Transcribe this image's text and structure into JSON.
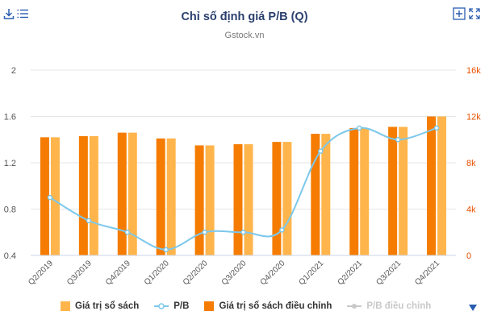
{
  "header": {
    "title": "Chỉ số định giá P/B (Q)",
    "subtitle": "Gstock.vn"
  },
  "colors": {
    "book_value": "#ffb54c",
    "adjusted_book_value": "#f57c00",
    "pb_line": "#7cc8ec",
    "pb_adjusted": "#c8c8c8",
    "right_axis": "#e65100",
    "grid": "#e6e6e6",
    "title": "#2a3f6e",
    "toolbar": "#2a5db0"
  },
  "toolbar": {
    "download_icon": "download-icon",
    "menu_icon": "menu-icon",
    "zoom_in_icon": "zoom-in-icon",
    "fullscreen_icon": "fullscreen-icon"
  },
  "chart_data": {
    "type": "bar",
    "title": "Chỉ số định giá P/B (Q)",
    "subtitle": "Gstock.vn",
    "categories": [
      "Q2/2019",
      "Q3/2019",
      "Q4/2019",
      "Q1/2020",
      "Q2/2020",
      "Q3/2020",
      "Q4/2020",
      "Q1/2021",
      "Q2/2021",
      "Q3/2021",
      "Q4/2021"
    ],
    "left_axis": {
      "ylim": [
        0.4,
        2.0
      ],
      "ticks": [
        "0.4",
        "0.8",
        "1.2",
        "1.6",
        "2"
      ],
      "tick_values": [
        0.4,
        0.8,
        1.2,
        1.6,
        2.0
      ]
    },
    "right_axis": {
      "ylim": [
        0,
        16000
      ],
      "ticks": [
        "0",
        "4k",
        "8k",
        "12k",
        "16k"
      ],
      "tick_values": [
        0,
        4000,
        8000,
        12000,
        16000
      ]
    },
    "grid": true,
    "legend_position": "bottom",
    "series": [
      {
        "name": "Giá trị sổ sách",
        "type": "bar",
        "axis": "right",
        "values": [
          10200,
          10300,
          10600,
          10100,
          9500,
          9600,
          9800,
          10500,
          11000,
          11100,
          12000
        ],
        "visible": true
      },
      {
        "name": "P/B",
        "type": "spline",
        "axis": "left",
        "values": [
          0.9,
          0.7,
          0.6,
          0.45,
          0.6,
          0.6,
          0.62,
          1.3,
          1.5,
          1.4,
          1.5
        ],
        "visible": true
      },
      {
        "name": "Giá trị sổ sách điều chỉnh",
        "type": "bar",
        "axis": "right",
        "values": [
          10200,
          10300,
          10600,
          10100,
          9500,
          9600,
          9800,
          10500,
          11000,
          11100,
          12000
        ],
        "visible": true
      },
      {
        "name": "P/B điều chỉnh",
        "type": "spline",
        "axis": "left",
        "values": [
          0.9,
          0.7,
          0.6,
          0.45,
          0.6,
          0.6,
          0.62,
          1.3,
          1.5,
          1.4,
          1.5
        ],
        "visible": false
      }
    ]
  },
  "legend": {
    "items": [
      "Giá trị sổ sách",
      "P/B",
      "Giá trị sổ sách điều chỉnh",
      "P/B điều chỉnh"
    ],
    "nav_icon": "legend-nav-down-icon"
  }
}
